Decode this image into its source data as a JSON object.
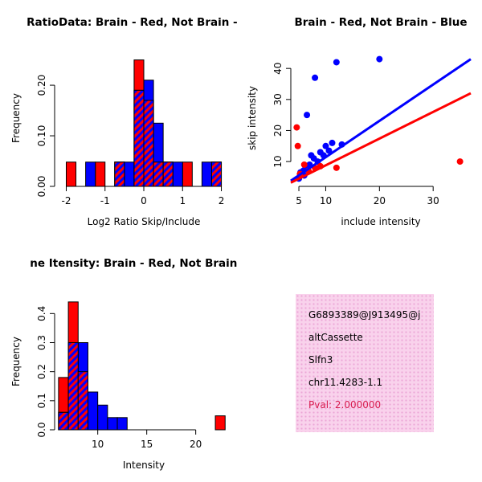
{
  "figure": {
    "background": "#ffffff"
  },
  "chart_data": [
    {
      "id": "ratio_histogram",
      "type": "bar",
      "title": "RatioData: Brain - Red, Not Brain - Blu",
      "xlabel": "Log2 Ratio Skip/Include",
      "ylabel": "Frequency",
      "xlim": [
        -2.3,
        2.3
      ],
      "ylim": [
        0,
        0.27
      ],
      "xticks": [
        -2,
        -1,
        0,
        1,
        2
      ],
      "xtick_labels": [
        "-2",
        "-1",
        "0",
        "1",
        "2"
      ],
      "yticks": [
        0,
        0.1,
        0.2
      ],
      "ytick_labels": [
        "0.00",
        "0.10",
        "0.20"
      ],
      "bin_width": 0.25,
      "legend": "overlap shown as red/blue diagonal hatch",
      "series": [
        {
          "name": "Brain",
          "color": "#FF0000",
          "bars": [
            [
              -2.0,
              -1.75,
              0.048
            ],
            [
              -1.25,
              -1.0,
              0.048
            ],
            [
              -0.75,
              -0.5,
              0.048
            ],
            [
              -0.25,
              0.0,
              0.25
            ],
            [
              0.0,
              0.25,
              0.17
            ],
            [
              0.25,
              0.5,
              0.048
            ],
            [
              0.5,
              0.75,
              0.048
            ],
            [
              1.0,
              1.25,
              0.048
            ],
            [
              1.75,
              2.0,
              0.048
            ]
          ]
        },
        {
          "name": "Not Brain",
          "color": "#0000FF",
          "bars": [
            [
              -1.5,
              -1.25,
              0.048
            ],
            [
              -0.75,
              -0.5,
              0.048
            ],
            [
              -0.5,
              -0.25,
              0.048
            ],
            [
              -0.25,
              0.0,
              0.19
            ],
            [
              0.0,
              0.25,
              0.21
            ],
            [
              0.25,
              0.5,
              0.125
            ],
            [
              0.5,
              0.75,
              0.048
            ],
            [
              0.75,
              1.0,
              0.048
            ],
            [
              1.5,
              1.75,
              0.048
            ],
            [
              1.75,
              2.0,
              0.048
            ]
          ]
        }
      ]
    },
    {
      "id": "intensity_scatter",
      "type": "scatter",
      "title": "Brain - Red, Not Brain - Blue",
      "xlabel": "include intensity",
      "ylabel": "skip intensity",
      "xlim": [
        3.5,
        37
      ],
      "ylim": [
        2,
        46
      ],
      "xticks": [
        5,
        10,
        20,
        30
      ],
      "xtick_labels": [
        "5",
        "10",
        "20",
        "30"
      ],
      "yticks": [
        10,
        20,
        30,
        40
      ],
      "ytick_labels": [
        "10",
        "20",
        "30",
        "40"
      ],
      "series": [
        {
          "name": "Not Brain",
          "color": "#0000FF",
          "points": [
            [
              5,
              4.5
            ],
            [
              5.3,
              6.5
            ],
            [
              5.8,
              7
            ],
            [
              6.0,
              5.5
            ],
            [
              6.2,
              8.5
            ],
            [
              6.5,
              25
            ],
            [
              7,
              9
            ],
            [
              7.3,
              12
            ],
            [
              7.8,
              11
            ],
            [
              8,
              37
            ],
            [
              8.5,
              10
            ],
            [
              9,
              13
            ],
            [
              9.6,
              12
            ],
            [
              10,
              15
            ],
            [
              10.6,
              13.5
            ],
            [
              11.2,
              16
            ],
            [
              12,
              42
            ],
            [
              13,
              15.5
            ],
            [
              20,
              43
            ]
          ],
          "trend_line": {
            "x": [
              3.5,
              37
            ],
            "y": [
              3.8,
              43
            ]
          }
        },
        {
          "name": "Brain",
          "color": "#FF0000",
          "points": [
            [
              4.6,
              21
            ],
            [
              4.8,
              15
            ],
            [
              5.2,
              6
            ],
            [
              6,
              9
            ],
            [
              6.8,
              7
            ],
            [
              8,
              8
            ],
            [
              9,
              8.5
            ],
            [
              12,
              8
            ],
            [
              35,
              10
            ]
          ],
          "trend_line": {
            "x": [
              3.5,
              37
            ],
            "y": [
              3.2,
              32
            ]
          }
        }
      ]
    },
    {
      "id": "gene_intensity_histogram",
      "type": "bar",
      "title": "ne Itensity: Brain - Red, Not Brain - B",
      "xlabel": "Intensity",
      "ylabel": "Frequency",
      "xlim": [
        5.6,
        23.8
      ],
      "ylim": [
        0,
        0.47
      ],
      "xticks": [
        10,
        15,
        20
      ],
      "xtick_labels": [
        "10",
        "15",
        "20"
      ],
      "yticks": [
        0,
        0.1,
        0.2,
        0.3,
        0.4
      ],
      "ytick_labels": [
        "0.0",
        "0.1",
        "0.2",
        "0.3",
        "0.4"
      ],
      "bin_width": 1,
      "legend": "overlap shown as red/blue diagonal hatch",
      "series": [
        {
          "name": "Brain",
          "color": "#FF0000",
          "bars": [
            [
              6,
              7,
              0.18
            ],
            [
              7,
              8,
              0.44
            ],
            [
              8,
              9,
              0.2
            ],
            [
              22,
              23,
              0.048
            ]
          ]
        },
        {
          "name": "Not Brain",
          "color": "#0000FF",
          "bars": [
            [
              6,
              7,
              0.06
            ],
            [
              7,
              8,
              0.3
            ],
            [
              8,
              9,
              0.3
            ],
            [
              9,
              10,
              0.13
            ],
            [
              10,
              11,
              0.085
            ],
            [
              11,
              12,
              0.042
            ],
            [
              12,
              13,
              0.042
            ]
          ]
        }
      ]
    }
  ],
  "info_box": {
    "background": "#f9d2ec",
    "dot_color": "#eca6d6",
    "lines": [
      "G6893389@J913495@j_",
      "altCassette",
      "Slfn3",
      "chr11.4283-1.1"
    ],
    "pval": "Pval: 2.000000",
    "pval_color": "#d81b4f"
  }
}
